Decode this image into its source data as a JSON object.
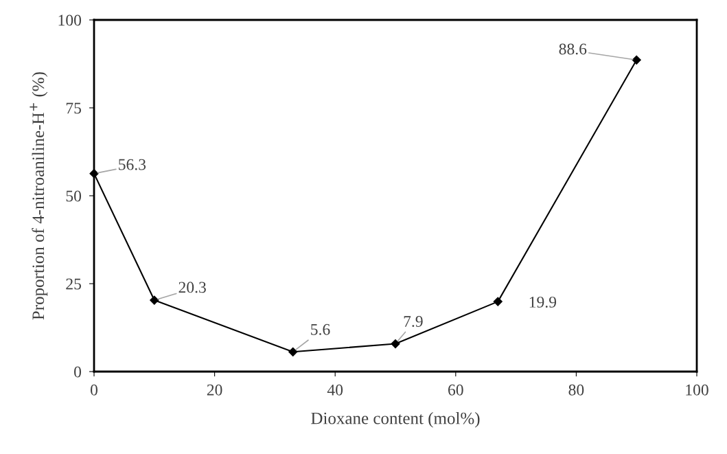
{
  "chart_data": {
    "type": "line",
    "xlabel": "Dioxane content (mol%)",
    "ylabel": "Proportion of 4-nitroaniline-H$^{+}$ (%)",
    "x": [
      0,
      10,
      33,
      50,
      67,
      90
    ],
    "series": [
      {
        "color": "#000000",
        "values": [
          56.3,
          20.3,
          5.6,
          7.9,
          19.9,
          88.6
        ]
      }
    ],
    "xlim": [
      0,
      100
    ],
    "xticks": [
      0,
      20,
      40,
      60,
      80,
      100
    ],
    "ylim": [
      0,
      100
    ],
    "yticks": [
      0,
      25,
      50,
      75,
      100
    ],
    "marker": "diamond",
    "line_style": "solid",
    "data_labels": true,
    "grid": false,
    "legend": false
  }
}
